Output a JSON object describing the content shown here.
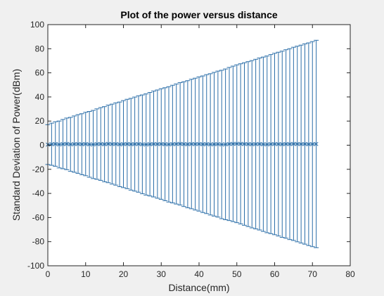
{
  "figure": {
    "background": "#f0f0f0",
    "axes_background": "#ffffff",
    "axis_color": "#262626",
    "series_color": "#2b6ea8"
  },
  "chart_data": {
    "type": "errorbar",
    "title": "Plot of the power versus distance",
    "xlabel": "Distance(mm)",
    "ylabel": "Standard Deviation of Power(dBm)",
    "xlim": [
      0,
      80
    ],
    "ylim": [
      -100,
      100
    ],
    "xticks": [
      0,
      10,
      20,
      30,
      40,
      50,
      60,
      70,
      80
    ],
    "yticks": [
      -100,
      -80,
      -60,
      -40,
      -20,
      0,
      20,
      40,
      60,
      80,
      100
    ],
    "grid": false,
    "legend": "none",
    "marker": "x",
    "x": [
      0,
      1,
      2,
      3,
      4,
      5,
      6,
      7,
      8,
      9,
      10,
      11,
      12,
      13,
      14,
      15,
      16,
      17,
      18,
      19,
      20,
      21,
      22,
      23,
      24,
      25,
      26,
      27,
      28,
      29,
      30,
      31,
      32,
      33,
      34,
      35,
      36,
      37,
      38,
      39,
      40,
      41,
      42,
      43,
      44,
      45,
      46,
      47,
      48,
      49,
      50,
      51,
      52,
      53,
      54,
      55,
      56,
      57,
      58,
      59,
      60,
      61,
      62,
      63,
      64,
      65,
      66,
      67,
      68,
      69,
      70,
      71
    ],
    "y": [
      0.5,
      0.8,
      1.0,
      0.6,
      0.9,
      1.1,
      0.7,
      0.9,
      1.0,
      0.8,
      1.0,
      0.7,
      0.6,
      0.9,
      1.0,
      0.8,
      1.1,
      0.9,
      1.0,
      0.7,
      0.9,
      1.0,
      0.8,
      0.9,
      1.0,
      0.7,
      0.6,
      0.8,
      1.0,
      0.9,
      1.0,
      0.8,
      0.7,
      0.9,
      1.0,
      1.1,
      0.9,
      0.8,
      1.0,
      0.9,
      1.0,
      0.8,
      0.9,
      0.7,
      0.8,
      0.9,
      0.6,
      0.7,
      1.0,
      1.1,
      1.2,
      1.1,
      1.0,
      0.9,
      0.8,
      0.9,
      1.0,
      0.8,
      0.7,
      0.9,
      1.0,
      0.9,
      0.8,
      1.0,
      0.9,
      1.1,
      1.0,
      0.9,
      1.0,
      0.8,
      0.9,
      1.0
    ],
    "error_start": 16.5,
    "error_end": 86.0
  }
}
